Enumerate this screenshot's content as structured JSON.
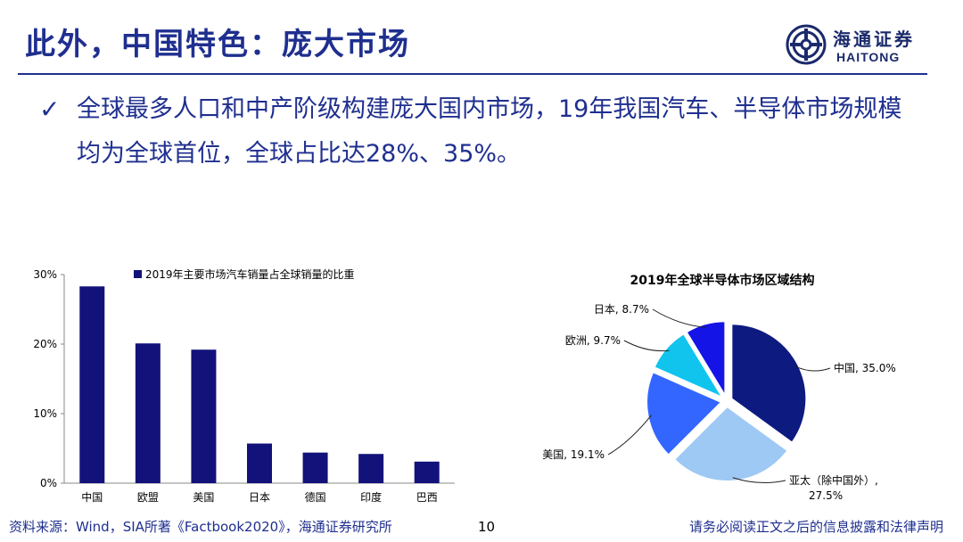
{
  "header": {
    "title": "此外，中国特色：庞大市场",
    "logo_cn": "海通证券",
    "logo_en": "HAITONG"
  },
  "bullet": {
    "text": "全球最多人口和中产阶级构建庞大国内市场，19年我国汽车、半导体市场规模均为全球首位，全球占比达28%、35%。"
  },
  "colors": {
    "title_blue": "#1f2f8f",
    "bar_navy": "#12127a"
  },
  "chart_data": [
    {
      "type": "bar",
      "legend": "2019年主要市场汽车销量占全球销量的比重",
      "categories": [
        "中国",
        "欧盟",
        "美国",
        "日本",
        "德国",
        "印度",
        "巴西"
      ],
      "values": [
        28.3,
        20.1,
        19.2,
        5.7,
        4.4,
        4.2,
        3.1
      ],
      "ylim": [
        0,
        30
      ],
      "yticks": [
        "0%",
        "10%",
        "20%",
        "30%"
      ],
      "unit": "%"
    },
    {
      "type": "pie",
      "title": "2019年全球半导体市场区域结构",
      "slices": [
        {
          "label": "中国, 35.0%",
          "value": 35.0,
          "color": "#0d1a80"
        },
        {
          "label": "亚太（除中国外）,",
          "label2": "27.5%",
          "value": 27.5,
          "color": "#9ec9f5"
        },
        {
          "label": "美国, 19.1%",
          "value": 19.1,
          "color": "#3366ff"
        },
        {
          "label": "欧洲, 9.7%",
          "value": 9.7,
          "color": "#10c4ee"
        },
        {
          "label": "日本, 8.7%",
          "value": 8.7,
          "color": "#1414e6"
        }
      ]
    }
  ],
  "footer": {
    "source": "资料来源：Wind，SIA所著《Factbook2020》，海通证券研究所",
    "page": "10",
    "disclaimer": "请务必阅读正文之后的信息披露和法律声明"
  }
}
